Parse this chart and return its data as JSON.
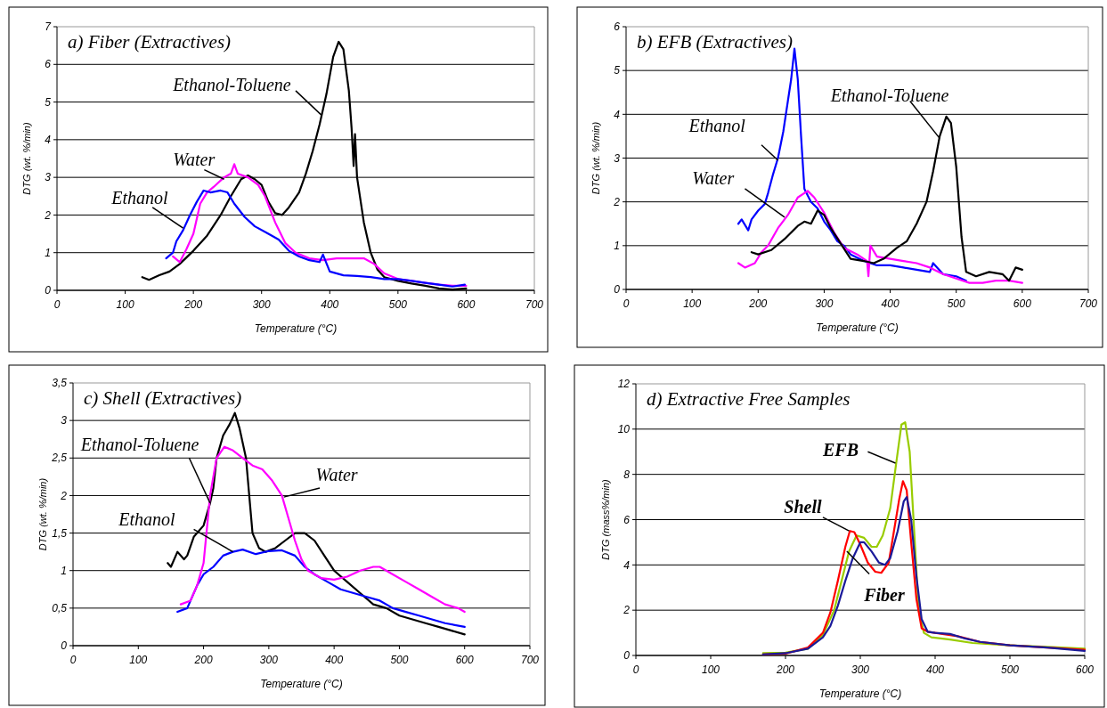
{
  "chart_data": [
    {
      "type": "line",
      "title": "a) Fiber (Extractives)",
      "xlabel": "Temperature (°C)",
      "ylabel": "DTG (wt. %/min)",
      "xlim": [
        0,
        700
      ],
      "xticks": [
        0,
        100,
        200,
        300,
        400,
        500,
        600,
        700
      ],
      "ylim": [
        0,
        7
      ],
      "yticks": [
        0,
        1,
        2,
        3,
        4,
        5,
        6,
        7
      ],
      "grid": "y",
      "series": [
        {
          "name": "Ethanol-Toluene",
          "color": "#000000",
          "x": [
            125,
            135,
            150,
            165,
            180,
            200,
            220,
            240,
            255,
            270,
            280,
            290,
            300,
            310,
            320,
            330,
            340,
            355,
            365,
            375,
            385,
            395,
            405,
            413,
            420,
            428,
            432,
            435,
            437,
            440,
            450,
            460,
            470,
            480,
            500,
            520,
            540,
            560,
            580,
            600
          ],
          "values": [
            0.35,
            0.28,
            0.4,
            0.5,
            0.7,
            1.05,
            1.45,
            2.0,
            2.5,
            2.95,
            3.05,
            2.95,
            2.8,
            2.35,
            2.05,
            2.0,
            2.2,
            2.6,
            3.1,
            3.7,
            4.4,
            5.2,
            6.2,
            6.6,
            6.4,
            5.3,
            4.3,
            3.3,
            4.15,
            3.0,
            1.8,
            1.0,
            0.55,
            0.35,
            0.25,
            0.18,
            0.12,
            0.05,
            0.02,
            0.05
          ]
        },
        {
          "name": "Water",
          "color": "#ff00ff",
          "x": [
            170,
            180,
            190,
            200,
            210,
            220,
            230,
            245,
            255,
            260,
            265,
            280,
            295,
            305,
            320,
            335,
            350,
            370,
            390,
            410,
            430,
            450,
            465,
            480,
            500,
            520,
            540,
            560,
            580,
            600
          ],
          "values": [
            0.9,
            0.75,
            1.1,
            1.5,
            2.3,
            2.6,
            2.75,
            3.0,
            3.1,
            3.35,
            3.1,
            3.0,
            2.8,
            2.5,
            1.8,
            1.25,
            1.0,
            0.85,
            0.8,
            0.85,
            0.85,
            0.85,
            0.7,
            0.45,
            0.3,
            0.25,
            0.2,
            0.15,
            0.12,
            0.12
          ]
        },
        {
          "name": "Ethanol",
          "color": "#0000ff",
          "x": [
            160,
            170,
            175,
            185,
            195,
            205,
            215,
            225,
            240,
            250,
            260,
            275,
            290,
            310,
            325,
            340,
            355,
            370,
            385,
            390,
            400,
            420,
            440,
            460,
            480,
            500,
            520,
            540,
            560,
            580,
            598
          ],
          "values": [
            0.85,
            1.0,
            1.3,
            1.6,
            2.0,
            2.35,
            2.65,
            2.6,
            2.65,
            2.6,
            2.3,
            1.95,
            1.7,
            1.5,
            1.35,
            1.05,
            0.9,
            0.8,
            0.75,
            0.95,
            0.5,
            0.4,
            0.38,
            0.35,
            0.3,
            0.3,
            0.25,
            0.2,
            0.15,
            0.1,
            0.15
          ]
        }
      ]
    },
    {
      "type": "line",
      "title": "b) EFB (Extractives)",
      "xlabel": "Temperature (°C)",
      "ylabel": "DTG (wt. %/min)",
      "xlim": [
        0,
        700
      ],
      "xticks": [
        0,
        100,
        200,
        300,
        400,
        500,
        600,
        700
      ],
      "ylim": [
        0,
        6
      ],
      "yticks": [
        0,
        1,
        2,
        3,
        4,
        5,
        6
      ],
      "grid": "y",
      "series": [
        {
          "name": "Ethanol",
          "color": "#0000ff",
          "x": [
            170,
            175,
            185,
            190,
            200,
            210,
            215,
            222,
            230,
            238,
            245,
            250,
            255,
            260,
            265,
            270,
            280,
            290,
            300,
            310,
            320,
            330,
            340,
            360,
            380,
            400,
            420,
            440,
            460,
            465,
            480,
            500,
            515
          ],
          "values": [
            1.5,
            1.6,
            1.35,
            1.6,
            1.8,
            1.95,
            2.2,
            2.6,
            3.0,
            3.6,
            4.3,
            4.8,
            5.5,
            4.8,
            3.5,
            2.3,
            2.0,
            1.85,
            1.55,
            1.35,
            1.1,
            1.0,
            0.8,
            0.65,
            0.55,
            0.55,
            0.5,
            0.45,
            0.4,
            0.6,
            0.35,
            0.3,
            0.2
          ]
        },
        {
          "name": "Water",
          "color": "#ff00ff",
          "x": [
            170,
            180,
            195,
            205,
            215,
            230,
            245,
            260,
            275,
            285,
            300,
            315,
            330,
            350,
            365,
            367,
            370,
            380,
            400,
            420,
            440,
            460,
            480,
            500,
            520,
            540,
            560,
            580,
            600
          ],
          "values": [
            0.6,
            0.5,
            0.6,
            0.85,
            1.0,
            1.4,
            1.7,
            2.1,
            2.25,
            2.1,
            1.75,
            1.3,
            0.95,
            0.8,
            0.65,
            0.3,
            1.0,
            0.75,
            0.7,
            0.65,
            0.6,
            0.5,
            0.35,
            0.25,
            0.15,
            0.15,
            0.2,
            0.2,
            0.15
          ]
        },
        {
          "name": "Ethanol-Toluene",
          "color": "#000000",
          "x": [
            190,
            200,
            220,
            240,
            260,
            270,
            280,
            290,
            300,
            310,
            325,
            340,
            360,
            375,
            390,
            410,
            425,
            440,
            455,
            465,
            475,
            485,
            492,
            500,
            508,
            515,
            530,
            550,
            570,
            580,
            590,
            600
          ],
          "values": [
            0.85,
            0.8,
            0.9,
            1.15,
            1.45,
            1.55,
            1.5,
            1.8,
            1.7,
            1.4,
            1.05,
            0.7,
            0.65,
            0.6,
            0.7,
            0.95,
            1.1,
            1.5,
            2.0,
            2.7,
            3.5,
            3.95,
            3.8,
            2.8,
            1.2,
            0.4,
            0.3,
            0.4,
            0.35,
            0.2,
            0.5,
            0.45
          ]
        }
      ]
    },
    {
      "type": "line",
      "title": "c) Shell (Extractives)",
      "xlabel": "Temperature (°C)",
      "ylabel": "DTG (wt. %/min)",
      "xlim": [
        0,
        700
      ],
      "xticks": [
        0,
        100,
        200,
        300,
        400,
        500,
        600,
        700
      ],
      "ylim": [
        0,
        3.5
      ],
      "yticks": [
        0,
        {
          "value": 0.5,
          "label": "0,5"
        },
        1,
        {
          "value": 1.5,
          "label": "1,5"
        },
        2,
        {
          "value": 2.5,
          "label": "2,5"
        },
        3,
        {
          "value": 3.5,
          "label": "3,5"
        }
      ],
      "grid": "y",
      "series": [
        {
          "name": "Ethanol-Toluene",
          "color": "#000000",
          "x": [
            145,
            150,
            160,
            170,
            175,
            185,
            200,
            210,
            215,
            220,
            230,
            240,
            248,
            255,
            265,
            275,
            285,
            295,
            310,
            325,
            340,
            355,
            370,
            385,
            400,
            420,
            440,
            460,
            480,
            500,
            520,
            540,
            560,
            580,
            600
          ],
          "values": [
            1.1,
            1.05,
            1.25,
            1.15,
            1.2,
            1.45,
            1.6,
            1.9,
            2.1,
            2.5,
            2.8,
            2.95,
            3.1,
            2.9,
            2.5,
            1.5,
            1.3,
            1.25,
            1.3,
            1.4,
            1.5,
            1.5,
            1.4,
            1.2,
            1.0,
            0.85,
            0.7,
            0.55,
            0.5,
            0.4,
            0.35,
            0.3,
            0.25,
            0.2,
            0.15
          ]
        },
        {
          "name": "Ethanol",
          "color": "#0000ff",
          "x": [
            160,
            175,
            190,
            200,
            215,
            230,
            245,
            260,
            280,
            300,
            320,
            340,
            355,
            370,
            390,
            410,
            430,
            450,
            470,
            490,
            510,
            530,
            550,
            570,
            600
          ],
          "values": [
            0.45,
            0.5,
            0.8,
            0.95,
            1.05,
            1.2,
            1.25,
            1.28,
            1.22,
            1.26,
            1.27,
            1.2,
            1.05,
            0.95,
            0.85,
            0.75,
            0.7,
            0.65,
            0.6,
            0.5,
            0.45,
            0.4,
            0.35,
            0.3,
            0.25
          ]
        },
        {
          "name": "Water",
          "color": "#ff00ff",
          "x": [
            165,
            180,
            190,
            200,
            210,
            220,
            232,
            245,
            260,
            275,
            290,
            305,
            320,
            330,
            340,
            350,
            360,
            380,
            400,
            420,
            440,
            460,
            470,
            490,
            510,
            530,
            550,
            570,
            590,
            600
          ],
          "values": [
            0.55,
            0.6,
            0.8,
            1.1,
            2.0,
            2.5,
            2.65,
            2.6,
            2.5,
            2.4,
            2.35,
            2.2,
            2.0,
            1.7,
            1.4,
            1.15,
            1.0,
            0.9,
            0.88,
            0.92,
            1.0,
            1.05,
            1.05,
            0.95,
            0.85,
            0.75,
            0.65,
            0.55,
            0.5,
            0.45
          ]
        }
      ]
    },
    {
      "type": "line",
      "title": "d) Extractive Free Samples",
      "xlabel": "Temperature (°C)",
      "ylabel": "DTG (mass%/min)",
      "xlim": [
        0,
        600
      ],
      "xticks": [
        0,
        100,
        200,
        300,
        400,
        500,
        600
      ],
      "ylim": [
        0,
        12
      ],
      "yticks": [
        0,
        2,
        4,
        6,
        8,
        10,
        12
      ],
      "grid": "y",
      "series": [
        {
          "name": "EFB",
          "color": "#99cc00",
          "x": [
            170,
            200,
            230,
            250,
            265,
            275,
            285,
            295,
            305,
            315,
            322,
            330,
            340,
            348,
            355,
            360,
            366,
            372,
            378,
            385,
            395,
            420,
            450,
            500,
            550,
            600
          ],
          "values": [
            0.1,
            0.12,
            0.3,
            0.9,
            2.0,
            3.3,
            4.6,
            5.3,
            5.2,
            4.8,
            4.8,
            5.3,
            6.5,
            8.5,
            10.2,
            10.3,
            9.0,
            5.5,
            2.0,
            1.0,
            0.8,
            0.7,
            0.55,
            0.45,
            0.38,
            0.3
          ]
        },
        {
          "name": "Shell",
          "color": "#ff0000",
          "x": [
            170,
            200,
            230,
            250,
            260,
            270,
            280,
            286,
            292,
            300,
            310,
            320,
            328,
            338,
            345,
            352,
            357,
            362,
            368,
            375,
            382,
            390,
            410,
            430,
            460,
            500,
            550,
            600
          ],
          "values": [
            0.05,
            0.08,
            0.35,
            1.0,
            1.9,
            3.3,
            4.8,
            5.5,
            5.45,
            4.9,
            4.1,
            3.7,
            3.65,
            4.1,
            5.5,
            6.9,
            7.7,
            7.3,
            5.0,
            2.5,
            1.2,
            1.05,
            0.95,
            0.85,
            0.6,
            0.45,
            0.35,
            0.25
          ]
        },
        {
          "name": "Fiber",
          "color": "#1a1a9a",
          "x": [
            170,
            200,
            230,
            250,
            260,
            270,
            280,
            290,
            300,
            305,
            315,
            325,
            333,
            340,
            350,
            358,
            362,
            368,
            375,
            382,
            390,
            400,
            420,
            440,
            460,
            500,
            550,
            600
          ],
          "values": [
            0.05,
            0.1,
            0.3,
            0.8,
            1.3,
            2.2,
            3.3,
            4.3,
            5.0,
            5.0,
            4.6,
            4.1,
            4.0,
            4.3,
            5.5,
            6.8,
            7.0,
            6.0,
            3.5,
            1.6,
            1.05,
            1.0,
            0.95,
            0.75,
            0.6,
            0.45,
            0.35,
            0.2
          ]
        }
      ]
    }
  ]
}
